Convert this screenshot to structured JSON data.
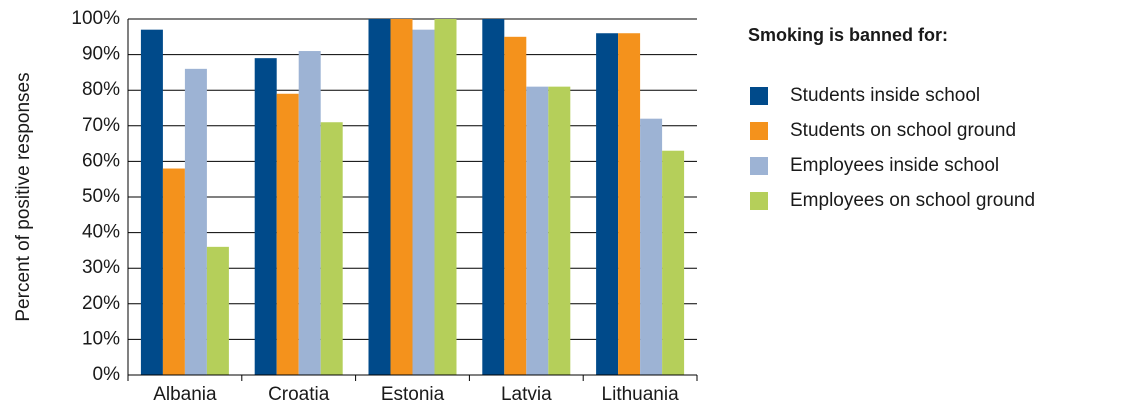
{
  "chart_data": {
    "type": "bar",
    "y_label": "Percent of positive responses",
    "legend_title": "Smoking is banned for:",
    "categories": [
      "Albania",
      "Croatia",
      "Estonia",
      "Latvia",
      "Lithuania"
    ],
    "series": [
      {
        "name": "Students inside school",
        "color": "#004a8a",
        "values": [
          97,
          89,
          100,
          100,
          96
        ]
      },
      {
        "name": "Students on school ground",
        "color": "#f4921c",
        "values": [
          58,
          79,
          100,
          95,
          96
        ]
      },
      {
        "name": "Employees inside school",
        "color": "#9db3d4",
        "values": [
          86,
          91,
          97,
          81,
          72
        ]
      },
      {
        "name": "Employees on school ground",
        "color": "#b5cf5a",
        "values": [
          36,
          71,
          100,
          81,
          63
        ]
      }
    ],
    "ylim": [
      0,
      100
    ],
    "yticks": [
      {
        "value": 0,
        "label": "0%"
      },
      {
        "value": 10,
        "label": "10%"
      },
      {
        "value": 20,
        "label": "20%"
      },
      {
        "value": 30,
        "label": "30%"
      },
      {
        "value": 40,
        "label": "40%"
      },
      {
        "value": 50,
        "label": "50%"
      },
      {
        "value": 60,
        "label": "60%"
      },
      {
        "value": 70,
        "label": "70%"
      },
      {
        "value": 80,
        "label": "80%"
      },
      {
        "value": 90,
        "label": "90%"
      },
      {
        "value": 100,
        "label": "100%"
      }
    ],
    "grid": true,
    "legend": "right"
  }
}
